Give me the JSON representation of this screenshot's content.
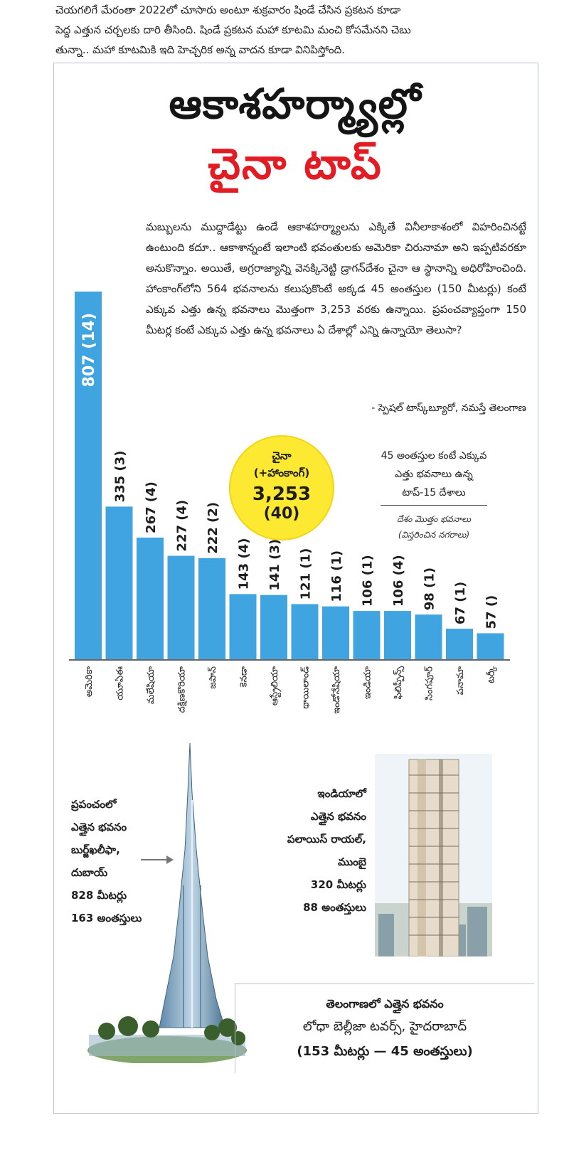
{
  "article_top": {
    "lines": [
      "చెయగలిగే మేరంతా 2022లో చూసారు అంటూ శుక్రవారం షిండే చేసిన ప్రకటన కూడా",
      "పెద్ద ఎత్తున చర్చలకు దారి తీసింది. షిండే ప్రకటన మహా కూటమి మంచి కోసమేనని చెబు",
      "తున్నా.. మహా కూటమికి ఇది హెచ్చరిక అన్న వాదన కూడా వినిపిస్తోంది."
    ]
  },
  "headline": {
    "line1": "ఆకాశహర్మ్యాల్లో",
    "line2": "చైనా టాప్"
  },
  "intro": {
    "text": "మబ్బులను ముద్దాడేట్టు ఉండే ఆకాశహర్మ్యాలను ఎక్కితే వినీలాకాశంలో విహరించినట్టే ఉంటుంది కదూ.. ఆకాశాన్నంటే ఇలాంటి భవంతులకు అమెరికా చిరునామా అని ఇప్పటివరకూ అనుకొన్నాం. అయితే, అగ్రరాజ్యాన్ని వెనక్కినెట్టి డ్రాగన్‌దేశం చైనా ఆ స్థానాన్ని అధిరోహించింది. హాంకాంగ్‌లోని 564 భవనాలను కలుపుకొంటే అక్కడ 45 అంతస్తుల (150 మీటర్లు) కంటే ఎక్కువ ఎత్తు ఉన్న భవనాలు మొత్తంగా 3,253 వరకు ఉన్నాయి. ప్రపంచవ్యాప్తంగా 150 మీటర్ల కంటే ఎక్కువ ఎత్తు ఉన్న భవనాలు ఏ దేశాల్లో ఎన్ని ఉన్నాయో తెలుసా?",
    "credit": "- స్పెషల్ టాస్క్‌బ్యూరో, నమస్తే తెలంగాణ"
  },
  "china_badge": {
    "line1": "చైనా",
    "line2": "(+హాంకాంగ్)",
    "value": "3,253",
    "cities": "(40)"
  },
  "legend": {
    "line1": "45 అంతస్తుల కంటే ఎక్కువ",
    "line2": "ఎత్తు భవనాలు ఉన్న",
    "line3": "టాప్-15 దేశాలు",
    "sub1": "దేశం మొత్తం భవనాలు",
    "sub2": "(విస్తరించిన నగరాలు)"
  },
  "chart_data": {
    "type": "bar",
    "categories": [
      "అమెరికా",
      "యూఏఈ",
      "మలేషియా",
      "దక్షిణకొరియా",
      "జపాన్",
      "కెనడా",
      "ఆస్ట్రేలియా",
      "థాయిలాండ్",
      "ఇండోనేషియా",
      "ఇండియా",
      "ఫిలిప్పీన్స్",
      "సింగపూర్",
      "పనామా",
      "టర్కీ"
    ],
    "values": [
      807,
      335,
      267,
      227,
      222,
      143,
      141,
      121,
      116,
      106,
      106,
      98,
      67,
      57
    ],
    "cities": [
      "14",
      "3",
      "4",
      "4",
      "2",
      "4",
      "3",
      "1",
      "1",
      "1",
      "4",
      "1",
      "1",
      ""
    ],
    "value_labels": [
      "807 (14)",
      "335 (3)",
      "267 (4)",
      "227 (4)",
      "222 (2)",
      "143 (4)",
      "141 (3)",
      "121 (1)",
      "116 (1)",
      "106 (1)",
      "106 (4)",
      "98 (1)",
      "67 (1)",
      "57 ()"
    ],
    "ylim": [
      0,
      807
    ],
    "bar_color": "#3fa4e0",
    "grid": false
  },
  "world_building": {
    "lines": [
      "ప్రపంచంలో",
      "ఎత్తైన భవనం",
      "బుర్జ్‌ఖలీఫా,",
      "దుబాయ్",
      "828 మీటర్లు",
      "163 అంతస్తులు"
    ]
  },
  "india_building": {
    "lines": [
      "ఇండియాలో",
      "ఎత్తైన భవనం",
      "పలాయిస్ రాయల్,",
      "ముంబై",
      "320 మీటర్లు",
      "88 అంతస్తులు"
    ]
  },
  "telangana_building": {
    "line1": "తెలంగాణలో ఎత్తైన భవనం",
    "line2": "లోధా బెల్లీజా టవర్స్, హైదరాబాద్",
    "line3": "(153 మీటర్లు — 45 అంతస్తులు)"
  }
}
